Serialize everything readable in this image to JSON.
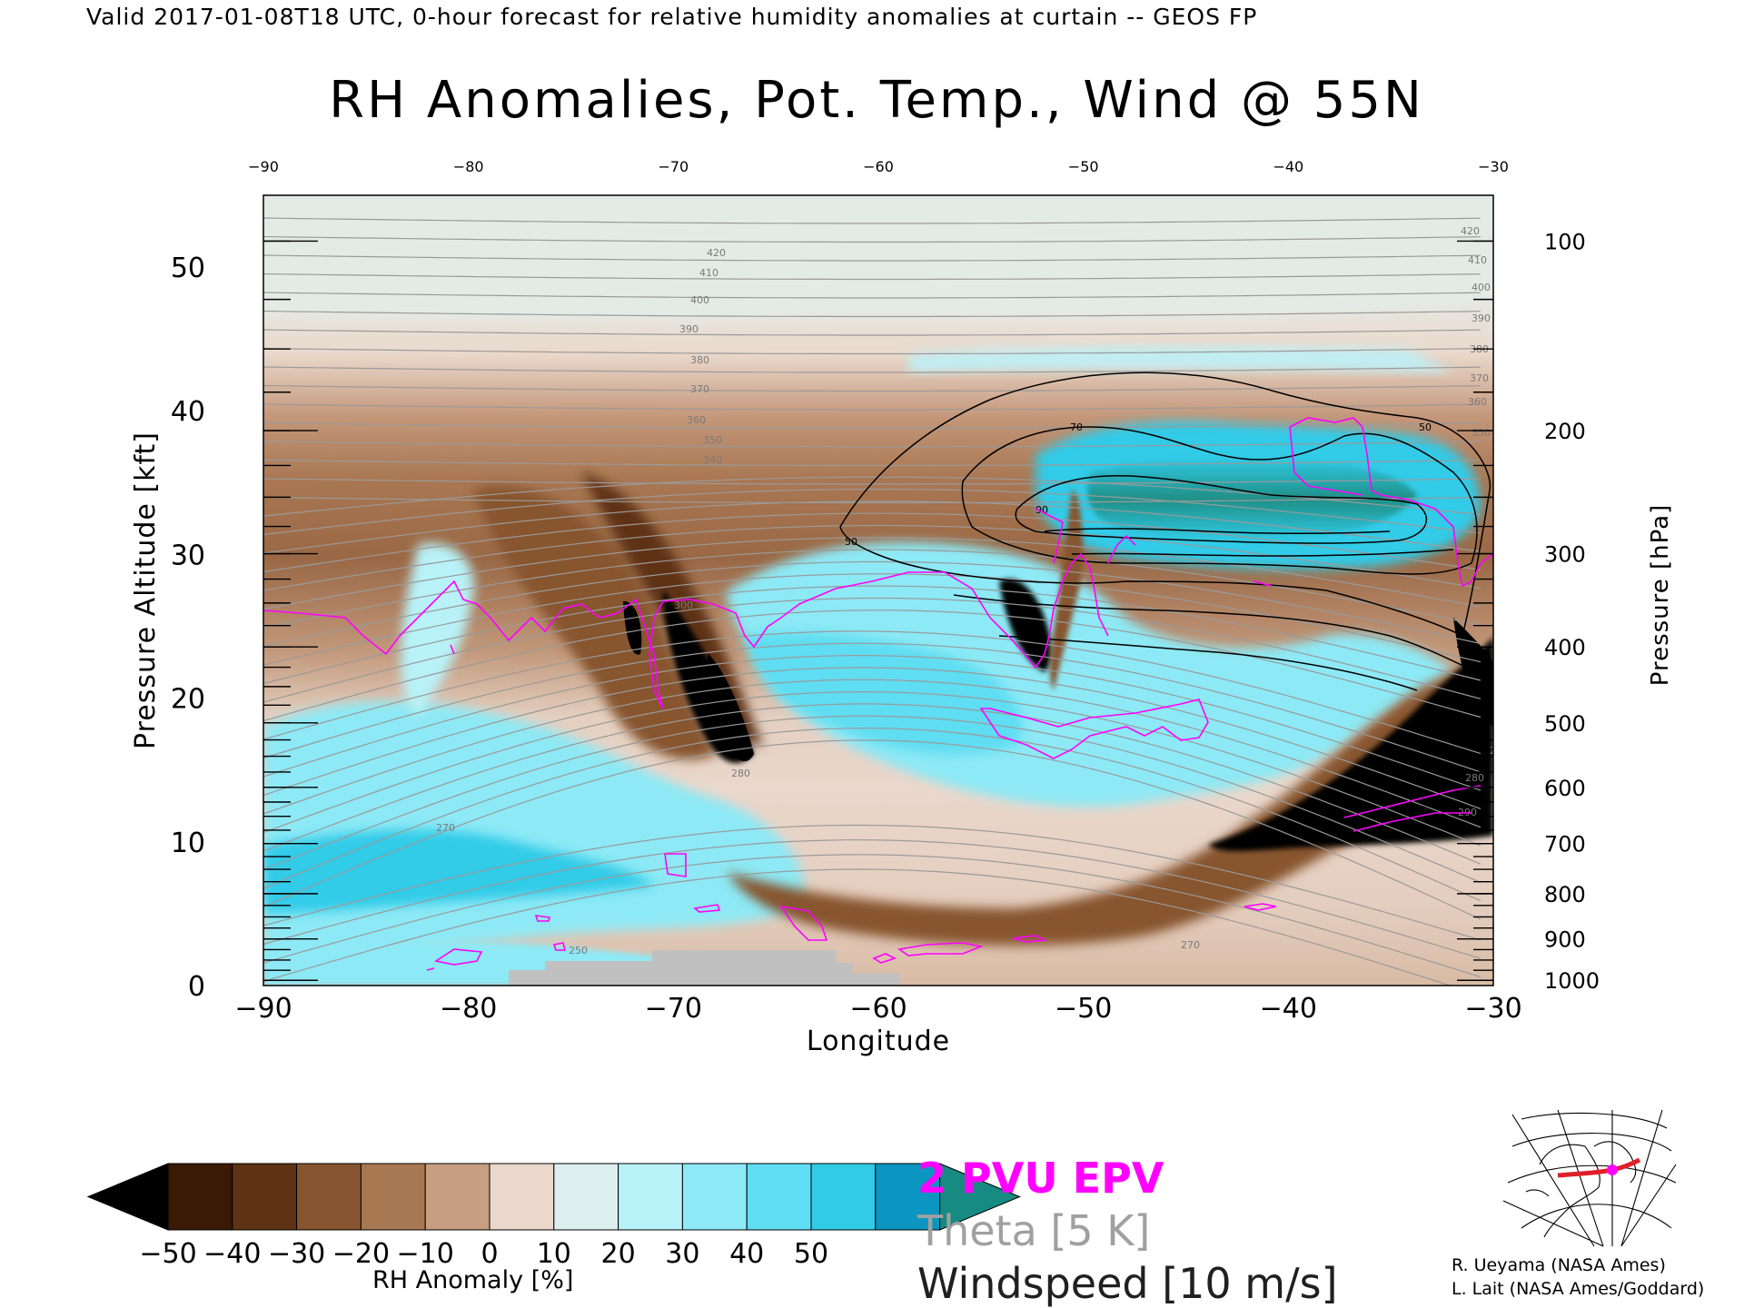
{
  "header": {
    "valid_line": "Valid 2017-01-08T18 UTC, 0-hour forecast for relative humidity anomalies at curtain -- GEOS FP",
    "title": "RH Anomalies, Pot. Temp., Wind @ 55N"
  },
  "legend": {
    "epv": "2 PVU EPV",
    "theta": "Theta [5 K]",
    "windspeed": "Windspeed [10 m/s]",
    "epv_color": "#ff00ff",
    "theta_color": "#a0a0a0",
    "wind_color": "#000000"
  },
  "colorbar": {
    "label": "RH Anomaly [%]",
    "ticks": [
      "-50",
      "-40",
      "-30",
      "-20",
      "-10",
      "0",
      "10",
      "20",
      "30",
      "40",
      "50"
    ],
    "colors": [
      "#000000",
      "#3a1a05",
      "#5e3214",
      "#87552f",
      "#a87852",
      "#c89e82",
      "#ead8cc",
      "#dcefee",
      "#b8f2f8",
      "#8de9f5",
      "#5fddf2",
      "#31cbe8",
      "#0a96c0",
      "#178a82"
    ]
  },
  "credits": {
    "line1": "R. Ueyama (NASA Ames)",
    "line2": "L. Lait (NASA Ames/Goddard)"
  },
  "inset_map": {
    "icon": "polar-map-inset-icon",
    "track_color": "#e0202a",
    "marker_color": "#ff00ff"
  },
  "chart_data": {
    "type": "heatmap",
    "title": "RH Anomalies, Pot. Temp., Wind @ 55N",
    "xlabel": "Longitude",
    "ylabel": "Pressure Altitude [kft]",
    "ylabel_right": "Pressure [hPa]",
    "xlim": [
      -90,
      -30
    ],
    "ylim": [
      0,
      55
    ],
    "x_ticks": [
      -90,
      -80,
      -70,
      -60,
      -50,
      -40,
      -30
    ],
    "x_ticks_top": [
      -90,
      -80,
      -70,
      -60,
      -50,
      -40,
      -30
    ],
    "y_ticks": [
      0,
      10,
      20,
      30,
      40,
      50
    ],
    "pressure_ticks": [
      100,
      200,
      300,
      400,
      500,
      600,
      700,
      800,
      900,
      1000
    ],
    "theta_labels": [
      "250",
      "270",
      "280",
      "290",
      "300",
      "340",
      "350",
      "360",
      "370",
      "380",
      "390",
      "400",
      "410",
      "420"
    ],
    "wind_labels": [
      "50",
      "70",
      "90"
    ],
    "features": [
      {
        "name": "moist anomaly",
        "lon_range": [
          -72,
          -40
        ],
        "alt_range_kft": [
          15,
          30
        ],
        "rh_anomaly": 20
      },
      {
        "name": "moist anomaly",
        "lon_range": [
          -52,
          -32
        ],
        "alt_range_kft": [
          28,
          38
        ],
        "rh_anomaly": 50
      },
      {
        "name": "dry anomaly",
        "lon_range": [
          -70,
          -64
        ],
        "alt_range_kft": [
          15,
          28
        ],
        "rh_anomaly": -50
      },
      {
        "name": "dry anomaly",
        "lon_range": [
          -44,
          -30
        ],
        "alt_range_kft": [
          9,
          20
        ],
        "rh_anomaly": -50
      },
      {
        "name": "moist anomaly",
        "lon_range": [
          -90,
          -72
        ],
        "alt_range_kft": [
          3,
          14
        ],
        "rh_anomaly": 30
      }
    ]
  }
}
